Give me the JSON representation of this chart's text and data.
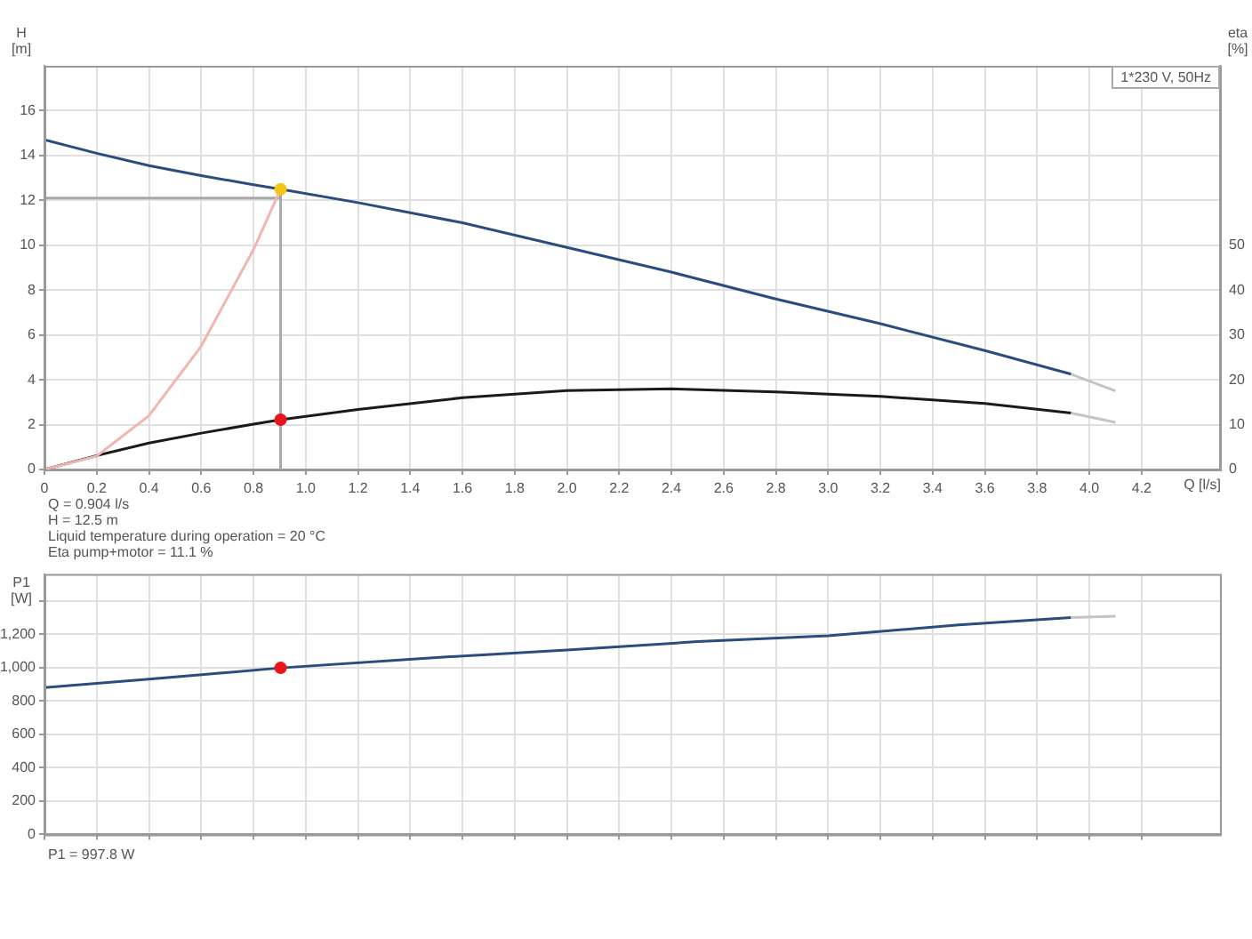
{
  "chart_data": [
    {
      "type": "line",
      "ylabel": "H [m]",
      "y2label": "eta [%]",
      "xlabel": "Q [l/s]",
      "annotations": [
        "1*230 V, 50Hz",
        "Q = 0.904 l/s",
        "H = 12.5 m",
        "Liquid temperature during operation = 20 °C",
        "Eta pump+motor = 11.1 %"
      ],
      "xlim": [
        0,
        4.5
      ],
      "xticks": [
        0,
        0.2,
        0.4,
        0.6,
        0.8,
        {
          "value": 1,
          "label": "1.0"
        },
        1.2,
        1.4,
        1.6,
        1.8,
        {
          "value": 2,
          "label": "2.0"
        },
        2.2,
        2.4,
        2.6,
        2.8,
        {
          "value": 3,
          "label": "3.0"
        },
        3.2,
        3.4,
        3.6,
        3.8,
        {
          "value": 4,
          "label": "4.0"
        },
        4.2
      ],
      "ylim": [
        0,
        18
      ],
      "yticks": [
        0,
        2,
        4,
        6,
        8,
        10,
        12,
        14,
        16
      ],
      "y2lim": [
        0,
        90
      ],
      "y2ticks": [
        0,
        10,
        20,
        30,
        40,
        50
      ],
      "grid": true,
      "legend": false,
      "marker": "none",
      "series": [
        {
          "color": "#f2b6ae",
          "x": [
            0,
            0.2,
            0.4,
            0.6,
            0.8,
            0.904
          ],
          "values": [
            0,
            0.6,
            2.4,
            5.5,
            9.8,
            12.5
          ]
        },
        {
          "color": "#a8a8a8",
          "x": [
            0.904,
            0.904
          ],
          "values": [
            0,
            12.5
          ]
        },
        {
          "color": "#a8a8a8",
          "x": [
            0,
            0.904
          ],
          "values": [
            12.1,
            12.1
          ]
        },
        {
          "color": "#c4c4c4",
          "x": [
            3.93,
            4.1
          ],
          "values": [
            4.25,
            3.5
          ]
        },
        {
          "color": "#2b4c7e",
          "x": [
            0,
            0.2,
            0.4,
            0.6,
            0.8,
            0.904,
            1.2,
            1.6,
            2.0,
            2.4,
            2.8,
            3.2,
            3.6,
            3.93
          ],
          "values": [
            14.7,
            14.1,
            13.55,
            13.1,
            12.7,
            12.5,
            11.9,
            11.0,
            9.9,
            8.8,
            7.6,
            6.5,
            5.3,
            4.25
          ]
        },
        {
          "color": "#c4c4c4",
          "axis": "y2",
          "x": [
            3.93,
            4.1
          ],
          "values": [
            12.6,
            10.5
          ]
        },
        {
          "color": "#1a1a1a",
          "axis": "y2",
          "x": [
            0,
            0.2,
            0.4,
            0.6,
            0.8,
            0.904,
            1.2,
            1.6,
            2.0,
            2.4,
            2.8,
            3.2,
            3.6,
            3.93
          ],
          "values": [
            0,
            3.1,
            5.9,
            8.1,
            10.1,
            11.1,
            13.4,
            16,
            17.6,
            18,
            17.3,
            16.3,
            14.7,
            12.6
          ]
        },
        {
          "type": "scatter",
          "marker": "circle",
          "color": "#f5c518",
          "x": [
            0.904
          ],
          "values": [
            12.5
          ]
        },
        {
          "type": "scatter",
          "marker": "circle",
          "color": "#e8141b",
          "axis": "y2",
          "x": [
            0.904
          ],
          "values": [
            11.1
          ]
        }
      ]
    },
    {
      "type": "line",
      "ylabel": "P1 [W]",
      "annotations": [
        "P1 = 997.8 W"
      ],
      "xlim": [
        0,
        4.5
      ],
      "xticks": [
        0,
        0.2,
        0.4,
        0.6,
        0.8,
        1,
        1.2,
        1.4,
        1.6,
        1.8,
        2,
        2.2,
        2.4,
        2.6,
        2.8,
        3,
        3.2,
        3.4,
        3.6,
        3.8,
        4,
        4.2
      ],
      "ylim": [
        0,
        1560
      ],
      "yticks": [
        0,
        200,
        400,
        600,
        800,
        {
          "value": 1000,
          "label": "1,000"
        },
        {
          "value": 1200,
          "label": "1,200"
        },
        {
          "value": 1400,
          "label": null
        }
      ],
      "tick_labels": "y",
      "grid": true,
      "legend": false,
      "marker": "none",
      "series": [
        {
          "color": "#c4c4c4",
          "x": [
            3.93,
            4.1
          ],
          "values": [
            1300,
            1308
          ]
        },
        {
          "color": "#2b4c7e",
          "x": [
            0,
            0.4,
            0.904,
            1.5,
            2.0,
            2.5,
            3.0,
            3.5,
            3.93
          ],
          "values": [
            880,
            930,
            997.8,
            1060,
            1105,
            1155,
            1190,
            1255,
            1300
          ]
        },
        {
          "type": "scatter",
          "marker": "circle",
          "color": "#e8141b",
          "x": [
            0.904
          ],
          "values": [
            997.8
          ]
        }
      ]
    }
  ]
}
